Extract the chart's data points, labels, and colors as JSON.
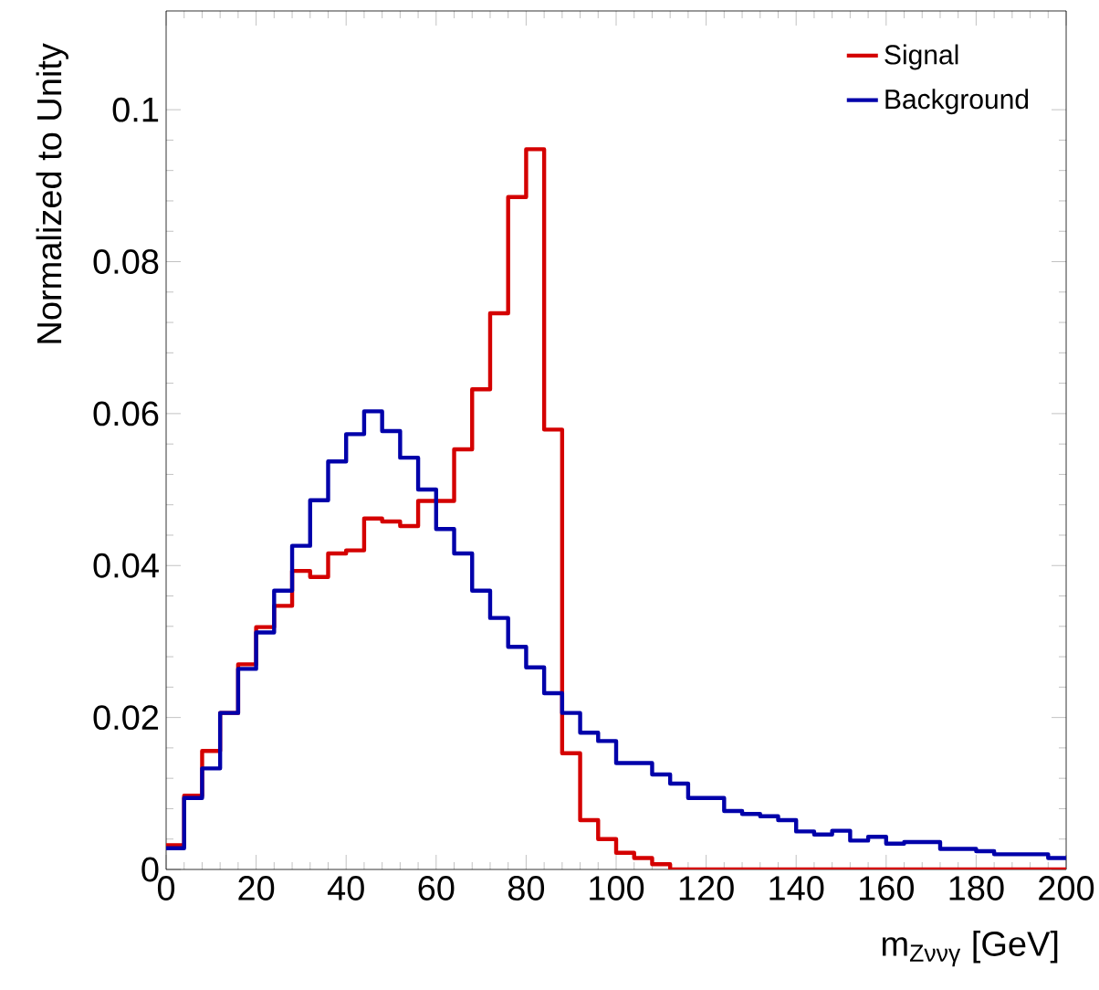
{
  "chart_data": {
    "type": "histogram",
    "xlabel": "m$_{Zννγ}$ [GeV]",
    "ylabel": "Normalized to Unity",
    "bins": [
      0,
      4,
      8,
      12,
      16,
      20,
      24,
      28,
      32,
      36,
      40,
      44,
      48,
      52,
      56,
      60,
      64,
      68,
      72,
      76,
      80,
      84,
      88,
      92,
      96,
      100,
      104,
      108,
      112,
      116,
      120,
      124,
      128,
      132,
      136,
      140,
      144,
      148,
      152,
      156,
      160,
      164,
      168,
      172,
      176,
      180,
      184,
      188,
      192,
      196,
      200
    ],
    "series": [
      {
        "name": "Signal",
        "color": "#d40000",
        "values": [
          0.0032,
          0.0097,
          0.0156,
          0.0206,
          0.027,
          0.0319,
          0.0347,
          0.0393,
          0.0385,
          0.0416,
          0.042,
          0.0462,
          0.0458,
          0.0452,
          0.0485,
          0.0485,
          0.0553,
          0.0632,
          0.0732,
          0.0885,
          0.0948,
          0.0579,
          0.0153,
          0.0065,
          0.004,
          0.0022,
          0.0015,
          0.0007,
          0,
          0,
          0,
          0,
          0,
          0,
          0,
          0,
          0,
          0,
          0,
          0,
          0,
          0,
          0,
          0,
          0,
          0,
          0,
          0,
          0,
          0
        ]
      },
      {
        "name": "Background",
        "color": "#0000aa",
        "values": [
          0.0028,
          0.0094,
          0.0133,
          0.0206,
          0.0264,
          0.0312,
          0.0367,
          0.0426,
          0.0486,
          0.0537,
          0.0573,
          0.0603,
          0.0577,
          0.0542,
          0.05,
          0.0448,
          0.0416,
          0.0367,
          0.0331,
          0.0293,
          0.0266,
          0.0232,
          0.0206,
          0.018,
          0.0169,
          0.014,
          0.014,
          0.0125,
          0.0113,
          0.0094,
          0.0094,
          0.0077,
          0.0073,
          0.007,
          0.0065,
          0.005,
          0.0046,
          0.0051,
          0.0038,
          0.0043,
          0.0034,
          0.0036,
          0.0036,
          0.0027,
          0.0027,
          0.0024,
          0.002,
          0.002,
          0.002,
          0.0015
        ]
      }
    ],
    "xlim": [
      0,
      200
    ],
    "ylim": [
      0,
      0.113
    ],
    "xticks": [
      0,
      20,
      40,
      60,
      80,
      100,
      120,
      140,
      160,
      180,
      200
    ],
    "yticks": [
      0,
      0.02,
      0.04,
      0.06,
      0.08,
      0.1
    ],
    "legend": "top right"
  }
}
